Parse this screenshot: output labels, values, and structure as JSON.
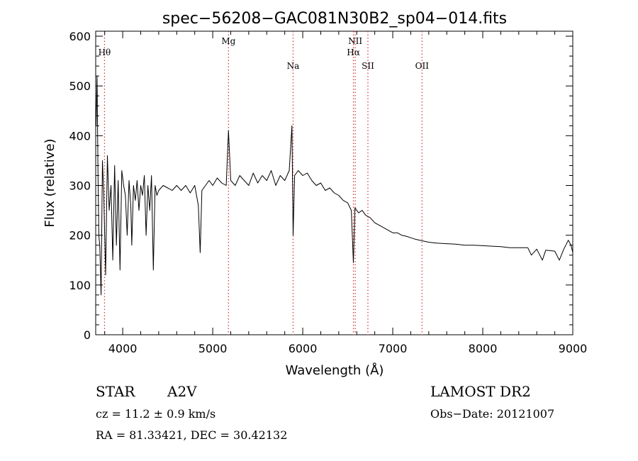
{
  "chart_data": {
    "type": "line",
    "title": "spec−56208−GAC081N30B2_sp04−014.fits",
    "xlabel": "Wavelength (Å)",
    "ylabel": "Flux (relative)",
    "xlim": [
      3700,
      9000
    ],
    "ylim": [
      0,
      610
    ],
    "xticks": [
      4000,
      5000,
      6000,
      7000,
      8000,
      9000
    ],
    "yticks": [
      0,
      100,
      200,
      300,
      400,
      500,
      600
    ],
    "grid": false,
    "line_color": "#000000",
    "marker_color": "#cc3333",
    "line_markers": [
      {
        "label": "Hθ",
        "x": 3798,
        "row": 1
      },
      {
        "label": "Mg",
        "x": 5175,
        "row": 0
      },
      {
        "label": "Na",
        "x": 5893,
        "row": 2
      },
      {
        "label": "NII",
        "x": 6583,
        "row": 0
      },
      {
        "label": "Hα",
        "x": 6563,
        "row": 1
      },
      {
        "label": "SII",
        "x": 6724,
        "row": 2
      },
      {
        "label": "OII",
        "x": 7325,
        "row": 2
      }
    ],
    "series": [
      {
        "x": [
          3705,
          3715,
          3725,
          3735,
          3745,
          3760,
          3775,
          3790,
          3810,
          3830,
          3850,
          3870,
          3890,
          3910,
          3930,
          3950,
          3970,
          3990,
          4010,
          4030,
          4050,
          4070,
          4090,
          4101,
          4120,
          4140,
          4160,
          4180,
          4200,
          4220,
          4240,
          4260,
          4280,
          4300,
          4320,
          4340,
          4360,
          4380,
          4400,
          4450,
          4500,
          4550,
          4600,
          4650,
          4700,
          4750,
          4800,
          4840,
          4861,
          4880,
          4920,
          4960,
          5000,
          5050,
          5100,
          5150,
          5175,
          5200,
          5250,
          5300,
          5350,
          5400,
          5450,
          5500,
          5550,
          5600,
          5650,
          5700,
          5750,
          5800,
          5850,
          5880,
          5893,
          5910,
          5950,
          6000,
          6050,
          6100,
          6150,
          6200,
          6250,
          6300,
          6350,
          6400,
          6450,
          6500,
          6540,
          6563,
          6580,
          6620,
          6660,
          6700,
          6750,
          6800,
          6850,
          6900,
          6950,
          7000,
          7050,
          7100,
          7150,
          7200,
          7250,
          7300,
          7350,
          7400,
          7450,
          7500,
          7600,
          7700,
          7800,
          7900,
          8000,
          8100,
          8200,
          8300,
          8400,
          8500,
          8540,
          8600,
          8662,
          8700,
          8800,
          8850,
          8900,
          8950,
          8980,
          9000
        ],
        "y": [
          420,
          520,
          330,
          200,
          180,
          80,
          350,
          280,
          120,
          360,
          250,
          300,
          150,
          340,
          180,
          310,
          130,
          330,
          300,
          280,
          200,
          310,
          260,
          180,
          300,
          270,
          310,
          250,
          300,
          280,
          320,
          200,
          300,
          250,
          320,
          130,
          300,
          280,
          290,
          300,
          295,
          290,
          300,
          290,
          300,
          285,
          300,
          260,
          165,
          290,
          300,
          310,
          300,
          315,
          305,
          300,
          410,
          310,
          300,
          320,
          310,
          300,
          325,
          305,
          320,
          310,
          330,
          300,
          320,
          310,
          330,
          420,
          200,
          320,
          330,
          320,
          325,
          310,
          300,
          305,
          290,
          295,
          285,
          280,
          270,
          265,
          250,
          145,
          255,
          245,
          250,
          240,
          235,
          225,
          220,
          215,
          210,
          205,
          205,
          200,
          198,
          195,
          192,
          190,
          188,
          186,
          185,
          184,
          183,
          182,
          180,
          180,
          179,
          178,
          177,
          175,
          175,
          175,
          160,
          172,
          150,
          170,
          168,
          150,
          172,
          190,
          180,
          165
        ]
      }
    ]
  },
  "info": {
    "object_class": "STAR",
    "subclass": "A2V",
    "survey": "LAMOST DR2",
    "redshift": "cz = 11.2 ± 0.9 km/s",
    "obs_date": "Obs−Date: 20121007",
    "coords": "RA =  81.33421, DEC =  30.42132"
  }
}
